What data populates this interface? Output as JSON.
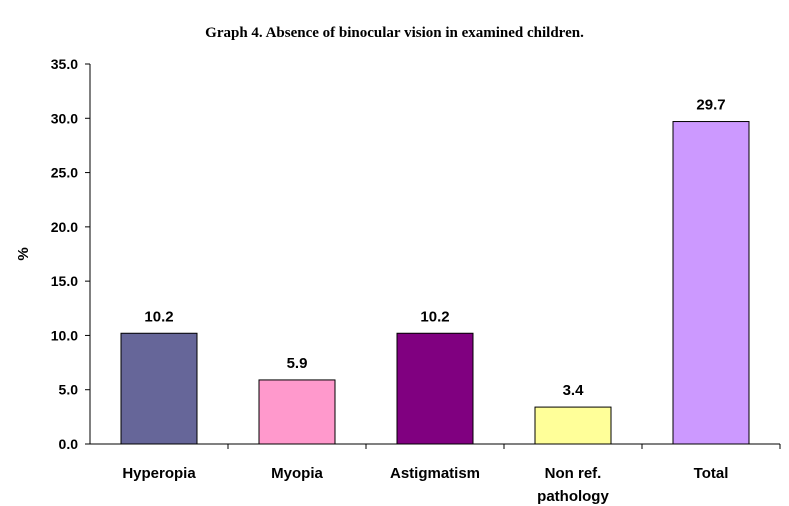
{
  "chart_data": {
    "type": "bar",
    "title": "Graph 4. Absence of binocular vision in examined children.",
    "xlabel": "",
    "ylabel": "%",
    "ylim": [
      0,
      35
    ],
    "yticks": [
      "0.0",
      "5.0",
      "10.0",
      "15.0",
      "20.0",
      "25.0",
      "30.0",
      "35.0"
    ],
    "grid": false,
    "legend": "none",
    "categories": [
      [
        "Hyperopia"
      ],
      [
        "Myopia"
      ],
      [
        "Astigmatism"
      ],
      [
        "Non ref.",
        "pathology"
      ],
      [
        "Total"
      ]
    ],
    "values": [
      10.2,
      5.9,
      10.2,
      3.4,
      29.7
    ],
    "value_labels": [
      "10.2",
      "5.9",
      "10.2",
      "3.4",
      "29.7"
    ],
    "colors": [
      "#666699",
      "#ff99cc",
      "#800080",
      "#ffff99",
      "#cc99ff"
    ]
  }
}
